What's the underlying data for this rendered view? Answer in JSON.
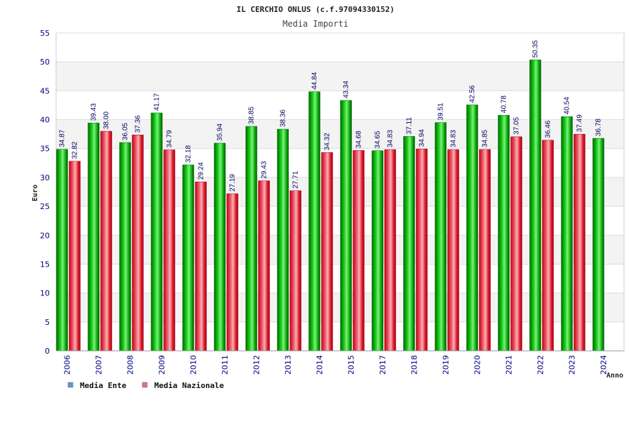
{
  "chart_data": {
    "type": "bar",
    "title": "IL CERCHIO ONLUS (c.f.97094330152)",
    "subtitle": "Media Importi",
    "ylabel": "Euro",
    "xlabel": "Anno",
    "ylim": [
      0,
      55
    ],
    "yticks": [
      0,
      5,
      10,
      15,
      20,
      25,
      30,
      35,
      40,
      45,
      50,
      55
    ],
    "categories": [
      "2006",
      "2007",
      "2008",
      "2009",
      "2010",
      "2011",
      "2012",
      "2013",
      "2014",
      "2015",
      "2017",
      "2018",
      "2019",
      "2020",
      "2021",
      "2022",
      "2023",
      "2024"
    ],
    "series": [
      {
        "name": "Media Ente",
        "color": "#00b000",
        "legend_color": "#5b9bd5",
        "values": [
          34.87,
          39.43,
          36.05,
          41.17,
          32.18,
          35.94,
          38.85,
          38.36,
          44.84,
          43.34,
          34.65,
          37.11,
          39.51,
          42.56,
          40.78,
          50.35,
          40.54,
          36.78
        ],
        "labels": [
          "34.87",
          "39.43",
          "36.05",
          "41.17",
          "32.18",
          "35.94",
          "38.85",
          "38.36",
          "44.84",
          "43.34",
          "34.65",
          "37.11",
          "39.51",
          "42.56",
          "40.78",
          "50.35",
          "40.54",
          "36.78"
        ]
      },
      {
        "name": "Media Nazionale",
        "color": "#e8202a",
        "legend_color": "#d9709a",
        "values": [
          32.82,
          38.0,
          37.36,
          34.79,
          29.24,
          27.19,
          29.43,
          27.71,
          34.32,
          34.68,
          34.83,
          34.94,
          34.83,
          34.85,
          37.05,
          36.46,
          37.49,
          null
        ],
        "labels": [
          "32.82",
          "38.00",
          "37.36",
          "34.79",
          "29.24",
          "27.19",
          "29.43",
          "27.71",
          "34.32",
          "34.68",
          "34.83",
          "34.94",
          "34.83",
          "34.85",
          "37.05",
          "36.46",
          "37.49",
          null
        ]
      }
    ],
    "grid": true,
    "legend_position": "bottom-left"
  }
}
